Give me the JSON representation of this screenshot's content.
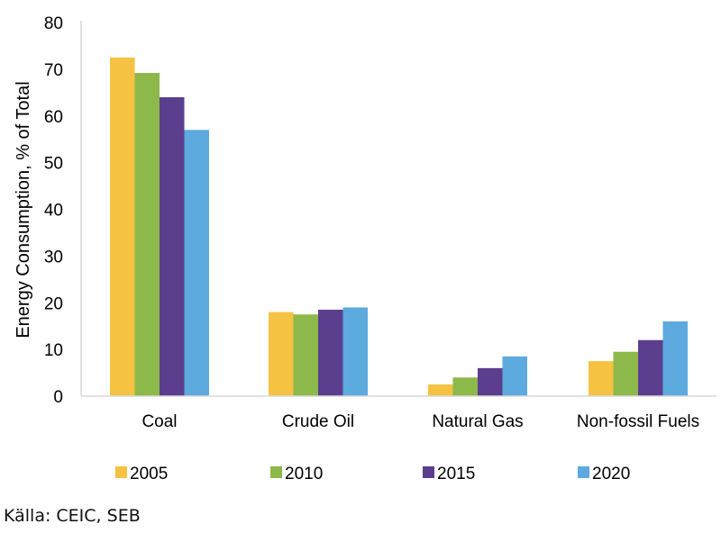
{
  "chart_data": {
    "type": "bar",
    "categories": [
      "Coal",
      "Crude Oil",
      "Natural Gas",
      "Non-fossil Fuels"
    ],
    "series": [
      {
        "name": "2005",
        "color": "#F5C242",
        "values": [
          72.5,
          18.0,
          2.5,
          7.5
        ]
      },
      {
        "name": "2010",
        "color": "#8DB84A",
        "values": [
          69.2,
          17.5,
          4.0,
          9.5
        ]
      },
      {
        "name": "2015",
        "color": "#5B3E8E",
        "values": [
          64.0,
          18.5,
          6.0,
          12.0
        ]
      },
      {
        "name": "2020",
        "color": "#5DAADF",
        "values": [
          57.0,
          19.0,
          8.5,
          16.0
        ]
      }
    ],
    "ylabel": "Energy Consumption, % of Total",
    "ylim": [
      0,
      80
    ],
    "yticks": [
      0,
      10,
      20,
      30,
      40,
      50,
      60,
      70,
      80
    ],
    "grid": false,
    "legend_position": "bottom"
  },
  "source": "Källa: CEIC, SEB"
}
